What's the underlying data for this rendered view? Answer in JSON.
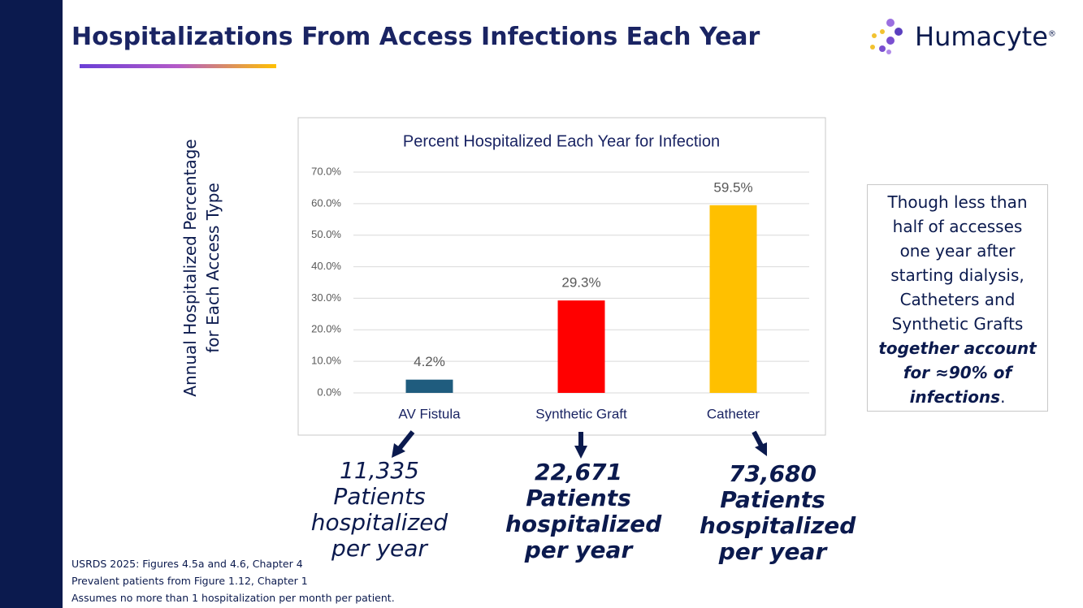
{
  "slide": {
    "title": "Hospitalizations From Access Infections Each Year",
    "logo_text": "Humacyte",
    "logo_mark": "®",
    "annotations": [
      {
        "count": "11,335",
        "text": "Patients hospitalized per year"
      },
      {
        "count": "22,671",
        "text": "Patients hospitalized per year"
      },
      {
        "count": "73,680",
        "text": "Patients hospitalized per year"
      }
    ],
    "note": {
      "text": "Though less than half of accesses one year after starting dialysis, Catheters and Synthetic Grafts",
      "emphasis": "together account for ≈90% of infections",
      "end": "."
    },
    "footnotes": [
      "USRDS 2025:  Figures 4.5a and 4.6, Chapter 4",
      "Prevalent patients from Figure 1.12, Chapter 1",
      "Assumes no more than 1 hospitalization per month per patient."
    ]
  },
  "chart_data": {
    "type": "bar",
    "title": "Percent Hospitalized Each Year for Infection",
    "ylabel": "Annual Hospitalized Percentage for Each Access Type",
    "categories": [
      "AV Fistula",
      "Synthetic Graft",
      "Catheter"
    ],
    "values": [
      4.2,
      29.3,
      59.5
    ],
    "value_labels": [
      "4.2%",
      "29.3%",
      "59.5%"
    ],
    "colors": [
      "#1f5c7e",
      "#ff0000",
      "#ffc000"
    ],
    "ylim": [
      0,
      70
    ],
    "yticks": [
      {
        "value": 0,
        "label": "0.0%"
      },
      {
        "value": 10,
        "label": "10.0%"
      },
      {
        "value": 20,
        "label": "20.0%"
      },
      {
        "value": 30,
        "label": "30.0%"
      },
      {
        "value": 40,
        "label": "40.0%"
      },
      {
        "value": 50,
        "label": "50.0%"
      },
      {
        "value": 60,
        "label": "60.0%"
      },
      {
        "value": 70,
        "label": "70.0%"
      }
    ],
    "grid": true
  }
}
